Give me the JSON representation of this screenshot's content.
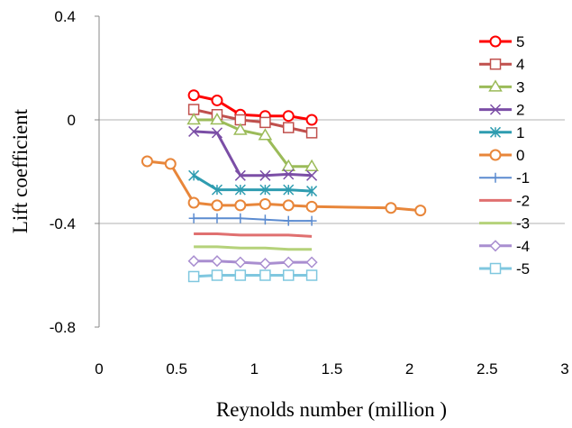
{
  "chart_data": {
    "type": "line",
    "xlabel": "Reynolds number (million )",
    "ylabel": "Lift coefficient",
    "xlim": [
      0,
      3
    ],
    "ylim": [
      -0.8,
      0.4
    ],
    "xticks": [
      "0",
      "0.5",
      "1",
      "1.5",
      "2",
      "2.5",
      "3"
    ],
    "xtick_values": [
      0,
      0.5,
      1,
      1.5,
      2,
      2.5,
      3
    ],
    "yticks": [
      "0.4",
      "0",
      "-0.4",
      "-0.8"
    ],
    "ytick_values": [
      0.4,
      0,
      -0.4,
      -0.8
    ],
    "grid": "horizontal at y=0 and y=-0.4",
    "legend_position": "right",
    "series": [
      {
        "name": "5",
        "color": "#ff0000",
        "marker": "circle",
        "line_width": 3,
        "x": [
          0.61,
          0.76,
          0.91,
          1.07,
          1.22,
          1.37
        ],
        "y": [
          0.095,
          0.075,
          0.02,
          0.015,
          0.015,
          0.0
        ]
      },
      {
        "name": "4",
        "color": "#c0504d",
        "marker": "square",
        "line_width": 3,
        "x": [
          0.61,
          0.76,
          0.91,
          1.07,
          1.22,
          1.37
        ],
        "y": [
          0.04,
          0.02,
          0.0,
          -0.01,
          -0.03,
          -0.05
        ]
      },
      {
        "name": "3",
        "color": "#9bbb59",
        "marker": "triangle",
        "line_width": 3,
        "x": [
          0.61,
          0.76,
          0.91,
          1.07,
          1.22,
          1.37
        ],
        "y": [
          0.0,
          0.0,
          -0.04,
          -0.06,
          -0.18,
          -0.18
        ]
      },
      {
        "name": "2",
        "color": "#7b4ea6",
        "marker": "x",
        "line_width": 3,
        "x": [
          0.61,
          0.76,
          0.91,
          1.07,
          1.22,
          1.37
        ],
        "y": [
          -0.045,
          -0.05,
          -0.215,
          -0.215,
          -0.21,
          -0.215
        ]
      },
      {
        "name": "1",
        "color": "#2e9cb0",
        "marker": "asterisk",
        "line_width": 3,
        "x": [
          0.61,
          0.76,
          0.91,
          1.07,
          1.22,
          1.37
        ],
        "y": [
          -0.215,
          -0.27,
          -0.27,
          -0.27,
          -0.27,
          -0.275
        ]
      },
      {
        "name": "0",
        "color": "#e8863a",
        "marker": "circle",
        "line_width": 3,
        "x": [
          0.31,
          0.46,
          0.61,
          0.76,
          0.91,
          1.07,
          1.22,
          1.37,
          1.88,
          2.07
        ],
        "y": [
          -0.16,
          -0.17,
          -0.32,
          -0.33,
          -0.33,
          -0.325,
          -0.33,
          -0.335,
          -0.34,
          -0.35
        ]
      },
      {
        "name": "-1",
        "color": "#5b8bd0",
        "marker": "plus",
        "line_width": 2,
        "x": [
          0.61,
          0.76,
          0.91,
          1.07,
          1.22,
          1.37
        ],
        "y": [
          -0.38,
          -0.38,
          -0.38,
          -0.385,
          -0.39,
          -0.39
        ]
      },
      {
        "name": "-2",
        "color": "#e07070",
        "marker": "none",
        "line_width": 3,
        "x": [
          0.61,
          0.76,
          0.91,
          1.07,
          1.22,
          1.37
        ],
        "y": [
          -0.44,
          -0.44,
          -0.445,
          -0.445,
          -0.445,
          -0.45
        ]
      },
      {
        "name": "-3",
        "color": "#b5d27a",
        "marker": "none",
        "line_width": 3,
        "x": [
          0.61,
          0.76,
          0.91,
          1.07,
          1.22,
          1.37
        ],
        "y": [
          -0.49,
          -0.49,
          -0.495,
          -0.495,
          -0.5,
          -0.5
        ]
      },
      {
        "name": "-4",
        "color": "#a98ed0",
        "marker": "diamond",
        "line_width": 3,
        "x": [
          0.61,
          0.76,
          0.91,
          1.07,
          1.22,
          1.37
        ],
        "y": [
          -0.545,
          -0.545,
          -0.55,
          -0.555,
          -0.55,
          -0.55
        ]
      },
      {
        "name": "-5",
        "color": "#7fc7df",
        "marker": "square",
        "line_width": 3,
        "x": [
          0.61,
          0.76,
          0.91,
          1.07,
          1.22,
          1.37
        ],
        "y": [
          -0.605,
          -0.6,
          -0.6,
          -0.6,
          -0.6,
          -0.6
        ]
      }
    ]
  }
}
